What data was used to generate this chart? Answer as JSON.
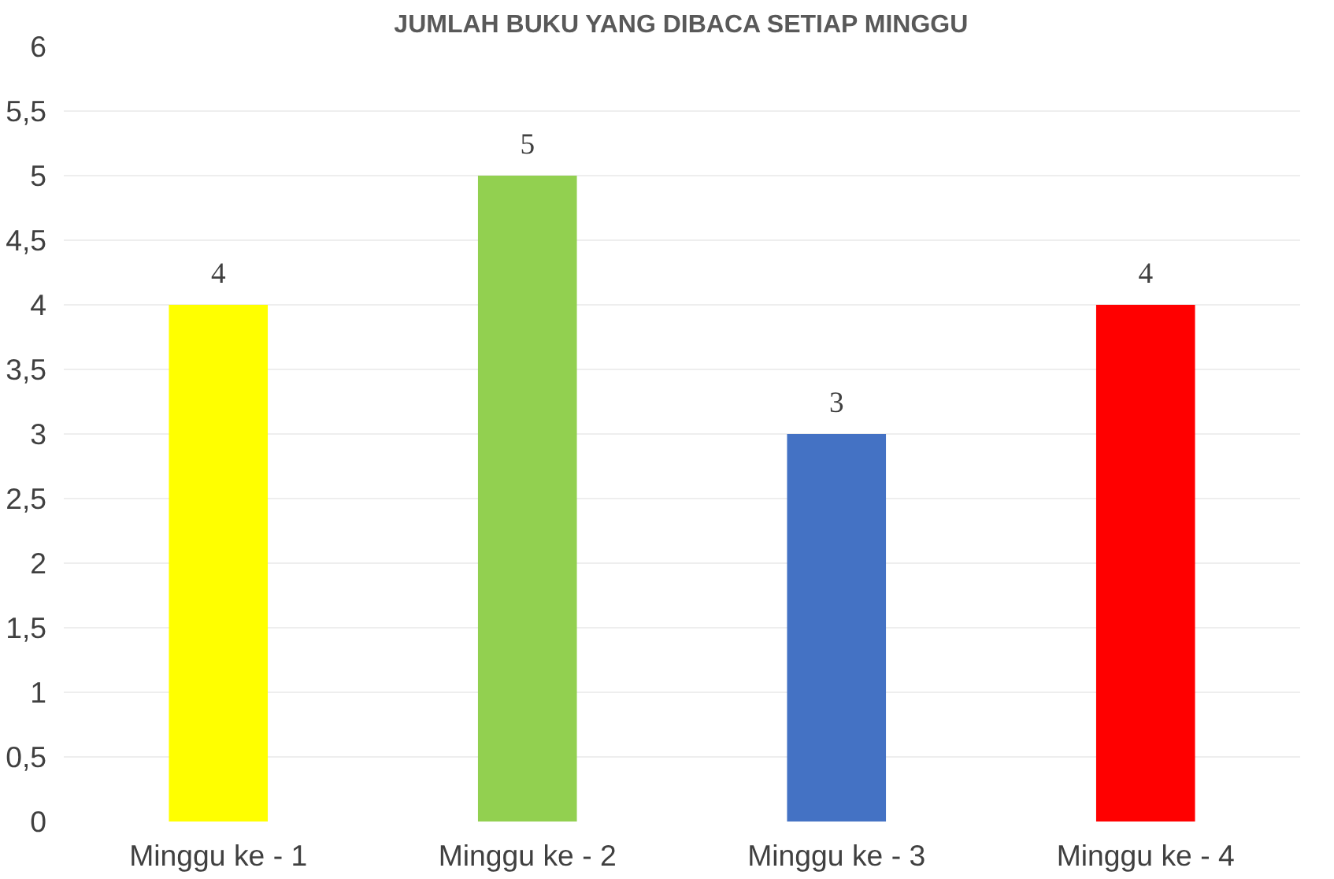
{
  "chart_data": {
    "type": "bar",
    "title": "JUMLAH BUKU YANG DIBACA SETIAP MINGGU",
    "categories": [
      "Minggu ke - 1",
      "Minggu ke - 2",
      "Minggu ke - 3",
      "Minggu ke - 4"
    ],
    "values": [
      4,
      5,
      3,
      4
    ],
    "colors": [
      "#ffff00",
      "#92d050",
      "#4472c4",
      "#ff0000"
    ],
    "ylim": [
      0,
      6
    ],
    "yticks": [
      0,
      {
        "value": 0.5,
        "label": "0,5"
      },
      1,
      {
        "value": 1.5,
        "label": "1,5"
      },
      2,
      {
        "value": 2.5,
        "label": "2,5"
      },
      3,
      {
        "value": 3.5,
        "label": "3,5"
      },
      4,
      {
        "value": 4.5,
        "label": "4,5"
      },
      5,
      {
        "value": 5.5,
        "label": "5,5"
      },
      6
    ],
    "grid": "y",
    "data_labels": true
  }
}
